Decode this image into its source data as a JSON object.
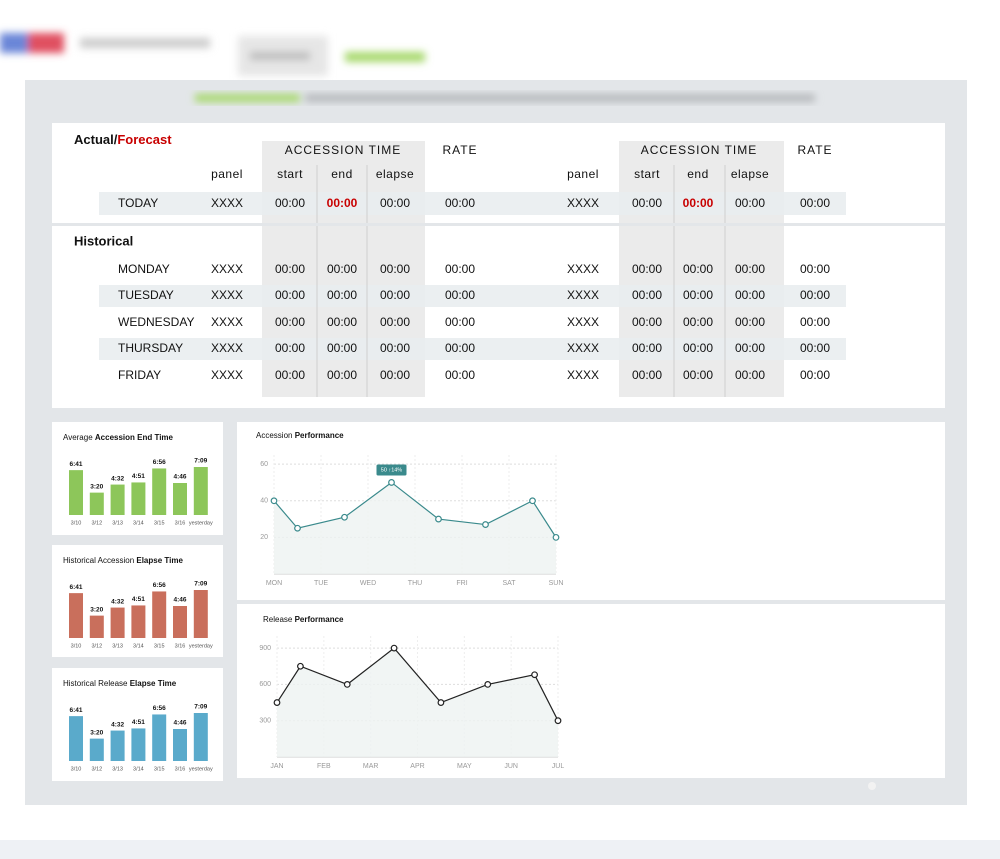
{
  "table": {
    "heading": {
      "actual": "Actual/",
      "forecast": "Forecast"
    },
    "groups": [
      {
        "time_header": "ACCESSION TIME",
        "rate_header": "RATE",
        "panel_header": "panel",
        "time_columns": [
          "start",
          "end",
          "elapse"
        ]
      },
      {
        "time_header": "ACCESSION TIME",
        "rate_header": "RATE",
        "panel_header": "panel",
        "time_columns": [
          "start",
          "end",
          "elapse"
        ]
      }
    ],
    "today": {
      "label": "TODAY",
      "cells": [
        "XXXX",
        "00:00",
        "00:00",
        "00:00",
        "00:00",
        "XXXX",
        "00:00",
        "00:00",
        "00:00",
        "00:00"
      ]
    },
    "historical_heading": "Historical",
    "rows": [
      {
        "label": "MONDAY",
        "cells": [
          "XXXX",
          "00:00",
          "00:00",
          "00:00",
          "00:00",
          "XXXX",
          "00:00",
          "00:00",
          "00:00",
          "00:00"
        ]
      },
      {
        "label": "TUESDAY",
        "cells": [
          "XXXX",
          "00:00",
          "00:00",
          "00:00",
          "00:00",
          "XXXX",
          "00:00",
          "00:00",
          "00:00",
          "00:00"
        ]
      },
      {
        "label": "WEDNESDAY",
        "cells": [
          "XXXX",
          "00:00",
          "00:00",
          "00:00",
          "00:00",
          "XXXX",
          "00:00",
          "00:00",
          "00:00",
          "00:00"
        ]
      },
      {
        "label": "THURSDAY",
        "cells": [
          "XXXX",
          "00:00",
          "00:00",
          "00:00",
          "00:00",
          "XXXX",
          "00:00",
          "00:00",
          "00:00",
          "00:00"
        ]
      },
      {
        "label": "FRIDAY",
        "cells": [
          "XXXX",
          "00:00",
          "00:00",
          "00:00",
          "00:00",
          "XXXX",
          "00:00",
          "00:00",
          "00:00",
          "00:00"
        ]
      }
    ]
  },
  "chart_data": [
    {
      "type": "bar",
      "title_light": "Average",
      "title_bold": "Accession End Time",
      "categories": [
        "3/10",
        "3/12",
        "3/13",
        "3/14",
        "3/15",
        "3/16",
        "yesterday"
      ],
      "values": [
        401,
        200,
        272,
        291,
        416,
        286,
        429
      ],
      "value_labels": [
        "6:41",
        "3:20",
        "4:32",
        "4:51",
        "6:56",
        "4:46",
        "7:09"
      ],
      "color": "#8dc65a"
    },
    {
      "type": "bar",
      "title_light": "Historical Accession",
      "title_bold": "Elapse Time",
      "categories": [
        "3/10",
        "3/12",
        "3/13",
        "3/14",
        "3/15",
        "3/16",
        "yesterday"
      ],
      "values": [
        401,
        200,
        272,
        291,
        416,
        286,
        429
      ],
      "value_labels": [
        "6:41",
        "3:20",
        "4:32",
        "4:51",
        "6:56",
        "4:46",
        "7:09"
      ],
      "color": "#c96f5c"
    },
    {
      "type": "bar",
      "title_light": "Historical Release",
      "title_bold": "Elapse Time",
      "categories": [
        "3/10",
        "3/12",
        "3/13",
        "3/14",
        "3/15",
        "3/16",
        "yesterday"
      ],
      "values": [
        401,
        200,
        272,
        291,
        416,
        286,
        429
      ],
      "value_labels": [
        "6:41",
        "3:20",
        "4:32",
        "4:51",
        "6:56",
        "4:46",
        "7:09"
      ],
      "color": "#5aaacb"
    },
    {
      "type": "line",
      "title_light": "Accession",
      "title_bold": "Performance",
      "x": [
        0,
        0.5,
        1.5,
        2.5,
        3.5,
        4.5,
        5.5,
        6
      ],
      "values": [
        40,
        25,
        31,
        50,
        30,
        27,
        40,
        20
      ],
      "xlim": [
        0,
        6
      ],
      "xticks": [
        {
          "value": 0,
          "label": "MON"
        },
        {
          "value": 1,
          "label": "TUE"
        },
        {
          "value": 2,
          "label": "WED"
        },
        {
          "value": 3,
          "label": "THU"
        },
        {
          "value": 4,
          "label": "FRI"
        },
        {
          "value": 5,
          "label": "SAT"
        },
        {
          "value": 6,
          "label": "SUN"
        }
      ],
      "ylim": [
        0,
        65
      ],
      "yticks": [
        20,
        40,
        60
      ],
      "grid": true,
      "color": "#3a8a8c",
      "annotation": "50 ↑14%"
    },
    {
      "type": "line",
      "title_light": "Release",
      "title_bold": "Performance",
      "x": [
        0,
        0.5,
        1.5,
        2.5,
        3.5,
        4.5,
        5.5,
        6
      ],
      "values": [
        450,
        750,
        600,
        900,
        450,
        600,
        680,
        300
      ],
      "xlim": [
        0,
        6
      ],
      "xticks": [
        {
          "value": 0,
          "label": "JAN"
        },
        {
          "value": 1,
          "label": "FEB"
        },
        {
          "value": 2,
          "label": "MAR"
        },
        {
          "value": 3,
          "label": "APR"
        },
        {
          "value": 4,
          "label": "MAY"
        },
        {
          "value": 5,
          "label": "JUN"
        },
        {
          "value": 6,
          "label": "JUL"
        }
      ],
      "ylim": [
        0,
        1000
      ],
      "yticks": [
        300,
        600,
        900
      ],
      "grid": true,
      "color": "#222222"
    }
  ]
}
